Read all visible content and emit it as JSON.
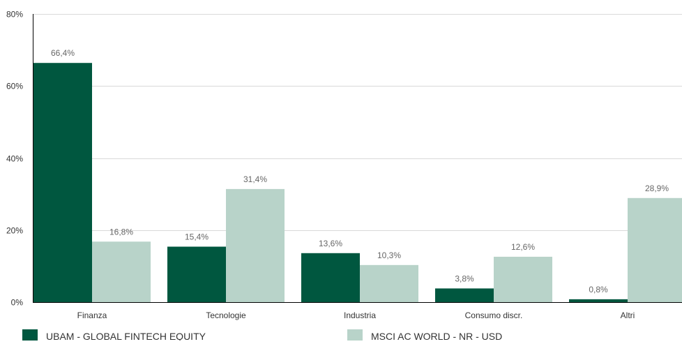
{
  "colors": {
    "series1": "#00573f",
    "series2": "#b8d3c9",
    "grid": "#d9d9d9",
    "axis": "#000000",
    "text": "#333333",
    "label": "#666666"
  },
  "chart_data": {
    "type": "bar",
    "categories": [
      "Finanza",
      "Tecnologie",
      "Industria",
      "Consumo discr.",
      "Altri"
    ],
    "series": [
      {
        "name": "UBAM - GLOBAL FINTECH EQUITY",
        "values": [
          66.4,
          15.4,
          13.6,
          3.8,
          0.8
        ],
        "labels": [
          "66,4%",
          "15,4%",
          "13,6%",
          "3,8%",
          "0,8%"
        ]
      },
      {
        "name": "MSCI AC WORLD - NR - USD",
        "values": [
          16.8,
          31.4,
          10.3,
          12.6,
          28.9
        ],
        "labels": [
          "16,8%",
          "31,4%",
          "10,3%",
          "12,6%",
          "28,9%"
        ]
      }
    ],
    "yticks": [
      0,
      20,
      40,
      60,
      80
    ],
    "ytick_labels": [
      "0%",
      "20%",
      "40%",
      "60%",
      "80%"
    ],
    "ylim": [
      0,
      80
    ],
    "grid": true,
    "legend_position": "bottom"
  }
}
